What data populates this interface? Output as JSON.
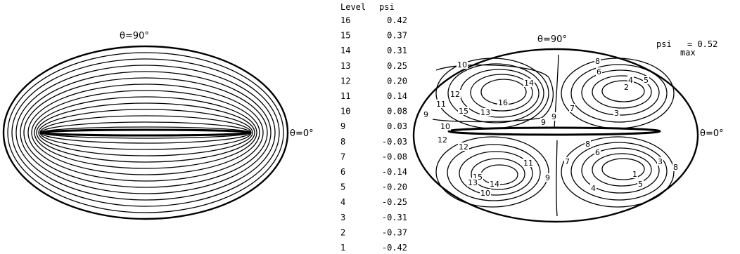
{
  "left_plot": {
    "top_label": "θ=90°",
    "right_label": "θ=0°"
  },
  "right_plot": {
    "top_label": "θ=90°",
    "right_label": "θ=0°",
    "psi_max_label": "psi",
    "psi_max_sub": "max",
    "psi_max_eq": "= 0.52",
    "contour_labels": [
      "10",
      "14",
      "8",
      "6",
      "4",
      "5",
      "2",
      "12",
      "11",
      "15",
      "16",
      "13",
      "9",
      "9",
      "7",
      "3",
      "9",
      "10",
      "12",
      "12",
      "8",
      "6",
      "7",
      "3",
      "8",
      "11",
      "15",
      "1",
      "13",
      "14",
      "9",
      "4",
      "5",
      "10"
    ]
  },
  "level_table": {
    "header_level": "Level",
    "header_psi": "psi",
    "rows": [
      {
        "level": "16",
        "psi": "0.42"
      },
      {
        "level": "15",
        "psi": "0.37"
      },
      {
        "level": "14",
        "psi": "0.31"
      },
      {
        "level": "13",
        "psi": "0.25"
      },
      {
        "level": "12",
        "psi": "0.20"
      },
      {
        "level": "11",
        "psi": "0.14"
      },
      {
        "level": "10",
        "psi": "0.08"
      },
      {
        "level": "9",
        "psi": "0.03"
      },
      {
        "level": "8",
        "psi": "-0.03"
      },
      {
        "level": "7",
        "psi": "-0.08"
      },
      {
        "level": "6",
        "psi": "-0.14"
      },
      {
        "level": "5",
        "psi": "-0.20"
      },
      {
        "level": "4",
        "psi": "-0.25"
      },
      {
        "level": "3",
        "psi": "-0.31"
      },
      {
        "level": "2",
        "psi": "-0.37"
      },
      {
        "level": "1",
        "psi": "-0.42"
      }
    ]
  }
}
